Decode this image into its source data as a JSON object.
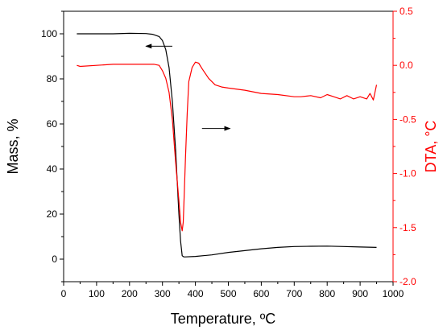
{
  "chart_data": {
    "type": "line",
    "xlabel": "Temperature, ºC",
    "ylabel_left": "Mass, %",
    "ylabel_right": "DTA, °C",
    "xlim": [
      0,
      1000
    ],
    "ylim_left": [
      -10,
      110
    ],
    "ylim_right": [
      -2.0,
      0.5
    ],
    "x_ticks": [
      "0",
      "100",
      "200",
      "300",
      "400",
      "500",
      "600",
      "700",
      "800",
      "900",
      "1000"
    ],
    "y_left_ticks": [
      "0",
      "20",
      "40",
      "60",
      "80",
      "100"
    ],
    "y_right_ticks": [
      "0.5",
      "0.0",
      "-0.5",
      "-1.0",
      "-1.5",
      "-2.0"
    ],
    "grid": false,
    "colors": {
      "mass": "#000000",
      "dta": "#ff0000"
    },
    "series": [
      {
        "axis": "left",
        "x": [
          40,
          100,
          150,
          200,
          250,
          270,
          290,
          300,
          310,
          320,
          330,
          340,
          350,
          355,
          360,
          365,
          370,
          400,
          450,
          500,
          550,
          600,
          650,
          700,
          750,
          800,
          850,
          900,
          950
        ],
        "values": [
          100,
          100,
          100,
          100.2,
          100.1,
          99.8,
          98.8,
          97,
          93,
          85,
          70,
          48,
          20,
          8,
          1.5,
          1,
          1,
          1.2,
          1.9,
          3,
          3.8,
          4.6,
          5.2,
          5.6,
          5.7,
          5.8,
          5.6,
          5.4,
          5.2
        ]
      },
      {
        "axis": "right",
        "x": [
          40,
          50,
          100,
          150,
          200,
          250,
          275,
          290,
          300,
          310,
          320,
          330,
          340,
          350,
          355,
          360,
          363,
          366,
          370,
          375,
          380,
          390,
          400,
          410,
          420,
          440,
          460,
          480,
          500,
          550,
          600,
          650,
          700,
          720,
          750,
          780,
          800,
          820,
          840,
          860,
          880,
          900,
          920,
          930,
          940,
          950
        ],
        "values": [
          0.0,
          -0.01,
          0.0,
          0.01,
          0.01,
          0.01,
          0.01,
          0.0,
          -0.05,
          -0.12,
          -0.25,
          -0.5,
          -0.9,
          -1.25,
          -1.45,
          -1.53,
          -1.45,
          -1.2,
          -0.85,
          -0.45,
          -0.15,
          -0.02,
          0.03,
          0.02,
          -0.03,
          -0.12,
          -0.18,
          -0.2,
          -0.21,
          -0.23,
          -0.26,
          -0.27,
          -0.29,
          -0.29,
          -0.28,
          -0.3,
          -0.27,
          -0.29,
          -0.31,
          -0.28,
          -0.31,
          -0.29,
          -0.31,
          -0.26,
          -0.32,
          -0.18
        ]
      }
    ],
    "annotations": [
      {
        "type": "arrow",
        "direction": "left",
        "points_to": "left-axis",
        "x": [
          330,
          250
        ],
        "y": 94.5
      },
      {
        "type": "arrow",
        "direction": "right",
        "points_to": "right-axis",
        "x": [
          420,
          505
        ],
        "y": 58
      }
    ]
  }
}
